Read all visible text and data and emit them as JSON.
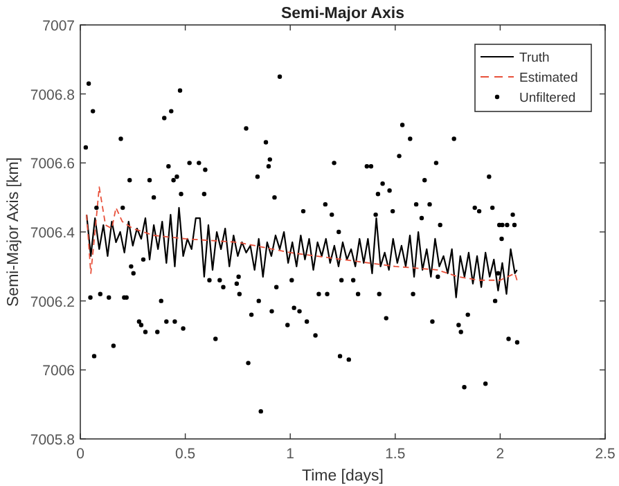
{
  "chart_data": {
    "type": "line",
    "title": "Semi-Major Axis",
    "xlabel": "Time [days]",
    "ylabel": "Semi-Major Axis [km]",
    "xlim": [
      0,
      2.5
    ],
    "xticks": [
      0,
      0.5,
      1,
      1.5,
      2,
      2.5
    ],
    "ylim": [
      7005.8,
      7007
    ],
    "yticks": [
      7005.8,
      7006,
      7006.2,
      7006.4,
      7006.6,
      7006.8,
      7007
    ],
    "legend": "top right",
    "series": [
      {
        "name": "Truth",
        "color": "#000000",
        "line_style": "solid",
        "x": [
          0.03,
          0.05,
          0.07,
          0.09,
          0.11,
          0.13,
          0.15,
          0.17,
          0.19,
          0.21,
          0.23,
          0.25,
          0.27,
          0.29,
          0.31,
          0.33,
          0.35,
          0.37,
          0.39,
          0.41,
          0.43,
          0.45,
          0.47,
          0.49,
          0.51,
          0.53,
          0.55,
          0.57,
          0.59,
          0.61,
          0.63,
          0.65,
          0.67,
          0.69,
          0.71,
          0.73,
          0.75,
          0.77,
          0.79,
          0.81,
          0.83,
          0.85,
          0.87,
          0.89,
          0.91,
          0.93,
          0.95,
          0.97,
          0.99,
          1.01,
          1.03,
          1.05,
          1.07,
          1.09,
          1.11,
          1.13,
          1.15,
          1.17,
          1.19,
          1.21,
          1.23,
          1.25,
          1.27,
          1.29,
          1.31,
          1.33,
          1.35,
          1.37,
          1.39,
          1.41,
          1.43,
          1.45,
          1.47,
          1.49,
          1.51,
          1.53,
          1.55,
          1.57,
          1.59,
          1.61,
          1.63,
          1.65,
          1.67,
          1.69,
          1.71,
          1.73,
          1.75,
          1.77,
          1.79,
          1.81,
          1.83,
          1.85,
          1.87,
          1.89,
          1.91,
          1.93,
          1.95,
          1.97,
          1.99,
          2.01,
          2.03,
          2.05,
          2.07,
          2.08
        ],
        "values": [
          7006.45,
          7006.33,
          7006.44,
          7006.35,
          7006.42,
          7006.33,
          7006.43,
          7006.37,
          7006.4,
          7006.34,
          7006.43,
          7006.36,
          7006.41,
          7006.38,
          7006.44,
          7006.32,
          7006.42,
          7006.35,
          7006.43,
          7006.31,
          7006.45,
          7006.3,
          7006.47,
          7006.33,
          7006.38,
          7006.35,
          7006.44,
          7006.44,
          7006.27,
          7006.42,
          7006.29,
          7006.4,
          7006.35,
          7006.41,
          7006.3,
          7006.39,
          7006.33,
          7006.37,
          7006.34,
          7006.36,
          7006.29,
          7006.38,
          7006.27,
          7006.37,
          7006.33,
          7006.39,
          7006.35,
          7006.4,
          7006.31,
          7006.37,
          7006.3,
          7006.39,
          7006.32,
          7006.38,
          7006.29,
          7006.37,
          7006.33,
          7006.38,
          7006.31,
          7006.36,
          7006.3,
          7006.37,
          7006.32,
          7006.35,
          7006.3,
          7006.38,
          7006.31,
          7006.38,
          7006.28,
          7006.44,
          7006.3,
          7006.34,
          7006.29,
          7006.38,
          7006.31,
          7006.36,
          7006.3,
          7006.39,
          7006.27,
          7006.4,
          7006.29,
          7006.35,
          7006.27,
          7006.38,
          7006.3,
          7006.33,
          7006.28,
          7006.35,
          7006.21,
          7006.33,
          7006.27,
          7006.34,
          7006.25,
          7006.33,
          7006.24,
          7006.34,
          7006.27,
          7006.32,
          7006.23,
          7006.31,
          7006.22,
          7006.35,
          7006.28,
          7006.29
        ]
      },
      {
        "name": "Estimated",
        "color": "#e8503a",
        "line_style": "dashed",
        "x": [
          0.03,
          0.05,
          0.07,
          0.09,
          0.12,
          0.15,
          0.17,
          0.2,
          0.25,
          0.35,
          0.5,
          0.75,
          1,
          1.25,
          1.5,
          1.7,
          1.8,
          1.9,
          2,
          2.07,
          2.08
        ],
        "values": [
          7006.45,
          7006.28,
          7006.4,
          7006.53,
          7006.42,
          7006.41,
          7006.47,
          7006.43,
          7006.41,
          7006.39,
          7006.38,
          7006.37,
          7006.34,
          7006.32,
          7006.3,
          7006.29,
          7006.27,
          7006.26,
          7006.26,
          7006.28,
          7006.26
        ]
      },
      {
        "type": "scatter",
        "name": "Unfiltered",
        "color": "#000000",
        "marker": "circle",
        "x": [
          0.026,
          0.04,
          0.06,
          0.048,
          0.066,
          0.077,
          0.095,
          0.136,
          0.158,
          0.193,
          0.202,
          0.209,
          0.22,
          0.235,
          0.242,
          0.253,
          0.28,
          0.29,
          0.31,
          0.3,
          0.33,
          0.35,
          0.367,
          0.385,
          0.4,
          0.41,
          0.42,
          0.433,
          0.444,
          0.45,
          0.46,
          0.475,
          0.48,
          0.49,
          0.52,
          0.565,
          0.59,
          0.595,
          0.615,
          0.644,
          0.664,
          0.681,
          0.745,
          0.758,
          0.754,
          0.79,
          0.8,
          0.815,
          0.844,
          0.85,
          0.86,
          0.884,
          0.897,
          0.903,
          0.912,
          0.925,
          0.934,
          0.95,
          0.987,
          1.007,
          1.018,
          1.044,
          1.062,
          1.079,
          1.12,
          1.136,
          1.167,
          1.176,
          1.198,
          1.209,
          1.231,
          1.237,
          1.244,
          1.279,
          1.3,
          1.323,
          1.365,
          1.385,
          1.407,
          1.418,
          1.424,
          1.44,
          1.473,
          1.457,
          1.488,
          1.519,
          1.534,
          1.571,
          1.585,
          1.6,
          1.626,
          1.64,
          1.664,
          1.677,
          1.695,
          1.703,
          1.714,
          1.78,
          1.802,
          1.813,
          1.829,
          1.846,
          1.879,
          1.9,
          1.93,
          1.947,
          1.963,
          1.976,
          1.996,
          2.01,
          2.033,
          2.04,
          2.06,
          2.068,
          2.081,
          2.007,
          1.99
        ],
        "values": [
          7006.645,
          7006.83,
          7006.75,
          7006.21,
          7006.04,
          7006.47,
          7006.22,
          7006.21,
          7006.07,
          7006.67,
          7006.47,
          7006.21,
          7006.21,
          7006.55,
          7006.3,
          7006.28,
          7006.14,
          7006.13,
          7006.11,
          7006.32,
          7006.55,
          7006.5,
          7006.11,
          7006.2,
          7006.73,
          7006.14,
          7006.59,
          7006.75,
          7006.55,
          7006.14,
          7006.56,
          7006.81,
          7006.51,
          7006.12,
          7006.6,
          7006.6,
          7006.51,
          7006.58,
          7006.26,
          7006.09,
          7006.26,
          7006.24,
          7006.25,
          7006.22,
          7006.27,
          7006.7,
          7006.02,
          7006.16,
          7006.56,
          7006.2,
          7005.88,
          7006.66,
          7006.59,
          7006.61,
          7006.17,
          7006.5,
          7006.24,
          7006.85,
          7006.13,
          7006.26,
          7006.18,
          7006.17,
          7006.46,
          7006.14,
          7006.1,
          7006.22,
          7006.48,
          7006.22,
          7006.45,
          7006.6,
          7006.4,
          7006.04,
          7006.26,
          7006.03,
          7006.26,
          7006.22,
          7006.59,
          7006.59,
          7006.45,
          7006.51,
          7006.22,
          7006.54,
          7006.52,
          7006.15,
          7006.46,
          7006.62,
          7006.71,
          7006.67,
          7006.22,
          7006.48,
          7006.44,
          7006.55,
          7006.48,
          7006.14,
          7006.6,
          7006.27,
          7006.42,
          7006.67,
          7006.13,
          7006.11,
          7005.95,
          7006.16,
          7006.47,
          7006.46,
          7005.96,
          7006.56,
          7006.47,
          7006.2,
          7006.42,
          7006.42,
          7006.42,
          7006.09,
          7006.45,
          7006.42,
          7006.08,
          7006.38,
          7006.28
        ]
      }
    ]
  }
}
